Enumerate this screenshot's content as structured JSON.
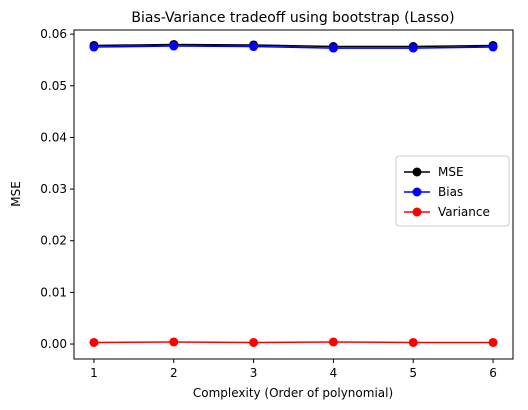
{
  "chart_data": {
    "type": "line",
    "title": "Bias-Variance tradeoff using bootstrap (Lasso)",
    "xlabel": "Complexity (Order of polynomial)",
    "ylabel": "MSE",
    "xlim": [
      0.75,
      6.25
    ],
    "ylim": [
      -0.0029,
      0.0608
    ],
    "x": [
      1,
      2,
      3,
      4,
      5,
      6
    ],
    "x_ticks": [
      1,
      2,
      3,
      4,
      5,
      6
    ],
    "x_tick_labels": [
      "1",
      "2",
      "3",
      "4",
      "5",
      "6"
    ],
    "y_ticks": [
      0.0,
      0.01,
      0.02,
      0.03,
      0.04,
      0.05,
      0.06
    ],
    "y_tick_labels": [
      "0.00",
      "0.01",
      "0.02",
      "0.03",
      "0.04",
      "0.05",
      "0.06"
    ],
    "grid": false,
    "legend_position": "center-right",
    "series": [
      {
        "name": "MSE",
        "color": "#000000",
        "marker": "circle",
        "values": [
          0.0578,
          0.058,
          0.0579,
          0.0576,
          0.0576,
          0.0578
        ]
      },
      {
        "name": "Bias",
        "color": "#0000ff",
        "marker": "circle",
        "values": [
          0.0575,
          0.0577,
          0.0576,
          0.0573,
          0.0573,
          0.0575
        ]
      },
      {
        "name": "Variance",
        "color": "#ff0000",
        "marker": "circle",
        "values": [
          0.0003,
          0.0004,
          0.0003,
          0.0004,
          0.0003,
          0.0003
        ]
      }
    ]
  }
}
